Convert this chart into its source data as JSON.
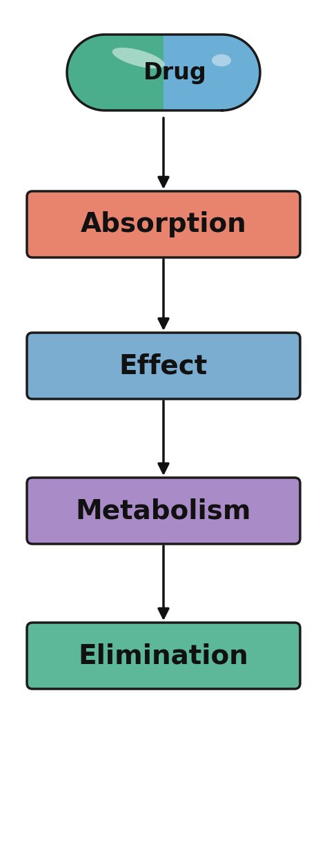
{
  "background_color": "#ffffff",
  "pill_left_color": "#4aad8b",
  "pill_right_color": "#6baed6",
  "pill_outline_color": "#1a1a1a",
  "pill_text": "Drug",
  "pill_text_color": "#111111",
  "boxes": [
    {
      "label": "Absorption",
      "color": "#e8836e",
      "outline": "#1a1a1a"
    },
    {
      "label": "Effect",
      "color": "#7aadd0",
      "outline": "#1a1a1a"
    },
    {
      "label": "Metabolism",
      "color": "#a98bc8",
      "outline": "#1a1a1a"
    },
    {
      "label": "Elimination",
      "color": "#5db89a",
      "outline": "#1a1a1a"
    }
  ],
  "arrow_color": "#111111",
  "text_color": "#111111",
  "font_size_pill": 24,
  "font_size_box": 28,
  "fig_width": 4.74,
  "fig_height": 12.43,
  "dpi": 100
}
